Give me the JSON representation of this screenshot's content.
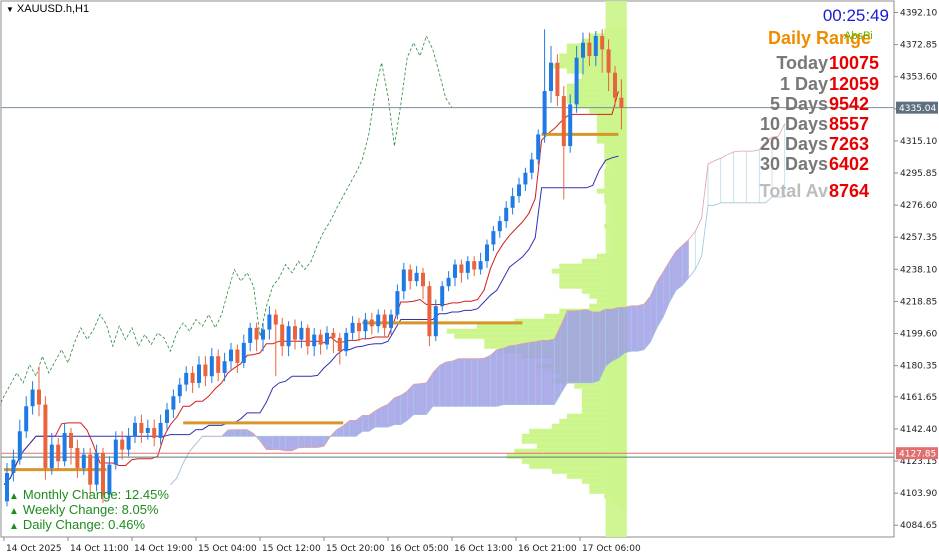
{
  "symbol": {
    "label": "XAUUSD.h,H1",
    "menu_icon": "triangle-down-icon"
  },
  "timer": "00:25:49",
  "daily_range": {
    "title": "Daily Range",
    "subtitle": "AbsPi",
    "rows": [
      {
        "label": "Today",
        "value": "10075"
      },
      {
        "label": "1 Day",
        "value": "12059"
      },
      {
        "label": "5 Days",
        "value": "9542"
      },
      {
        "label": "10 Days",
        "value": "8557"
      },
      {
        "label": "20 Days",
        "value": "7263"
      },
      {
        "label": "30 Days",
        "value": "6402"
      }
    ],
    "total": {
      "label": "Total Av",
      "value": "8764"
    }
  },
  "changes": [
    {
      "label": "Monthly Change: 12.45%",
      "icon": "triangle-up-icon"
    },
    {
      "label": "Weekly Change: 8.05%",
      "icon": "triangle-up-icon"
    },
    {
      "label": "Daily Change: 0.46%",
      "icon": "triangle-up-icon"
    }
  ],
  "colors": {
    "bull": "#1e7be6",
    "bear": "#e8643c",
    "cloud": "#9f9fe6",
    "volume_profile": "#ccf58c",
    "tenkan": "#d21e1e",
    "kijun": "#3232b4",
    "price_line": "#7a8fa0",
    "level_line": "#e07070",
    "support": "#d8962a"
  },
  "chart_data": {
    "type": "candlestick",
    "symbol": "XAUUSD.h",
    "timeframe": "H1",
    "y_range": [
      4080,
      4396
    ],
    "y_ticks": [
      "4392.10",
      "4372.85",
      "4353.60",
      "4334.35",
      "4315.10",
      "4295.85",
      "4276.60",
      "4257.35",
      "4238.10",
      "4218.85",
      "4199.60",
      "4180.35",
      "4161.65",
      "4142.40",
      "4123.15",
      "4103.90",
      "4084.65"
    ],
    "x_ticks": [
      "14 Oct 2025",
      "14 Oct 11:00",
      "14 Oct 19:00",
      "15 Oct 04:00",
      "15 Oct 12:00",
      "15 Oct 20:00",
      "16 Oct 05:00",
      "16 Oct 13:00",
      "16 Oct 21:00",
      "17 Oct 06:00"
    ],
    "current_price": "4335.04",
    "level_line": {
      "value": "4127.85",
      "value2": 4125.5
    },
    "support_lines": [
      {
        "value": 4118,
        "from": 0,
        "to": 16
      },
      {
        "value": 4146,
        "from": 28,
        "to": 53
      },
      {
        "value": 4206,
        "from": 56,
        "to": 81
      },
      {
        "value": 4319,
        "from": 84,
        "to": 96
      }
    ],
    "candles": [
      [
        4099,
        4116,
        4096,
        4122
      ],
      [
        4116,
        4124,
        4111,
        4130
      ],
      [
        4124,
        4141,
        4121,
        4148
      ],
      [
        4141,
        4156,
        4137,
        4162
      ],
      [
        4156,
        4166,
        4151,
        4171
      ],
      [
        4166,
        4157,
        4150,
        4180
      ],
      [
        4157,
        4119,
        4112,
        4162
      ],
      [
        4119,
        4133,
        4115,
        4140
      ],
      [
        4133,
        4123,
        4118,
        4137
      ],
      [
        4123,
        4140,
        4120,
        4146
      ],
      [
        4140,
        4131,
        4121,
        4143
      ],
      [
        4131,
        4119,
        4113,
        4136
      ],
      [
        4119,
        4127,
        4115,
        4131
      ],
      [
        4127,
        4109,
        4103,
        4131
      ],
      [
        4109,
        4128,
        4105,
        4133
      ],
      [
        4128,
        4103,
        4098,
        4131
      ],
      [
        4103,
        4121,
        4101,
        4126
      ],
      [
        4121,
        4136,
        4118,
        4141
      ],
      [
        4136,
        4130,
        4124,
        4141
      ],
      [
        4130,
        4138,
        4126,
        4143
      ],
      [
        4138,
        4146,
        4134,
        4150
      ],
      [
        4146,
        4140,
        4134,
        4151
      ],
      [
        4140,
        4143,
        4136,
        4148
      ],
      [
        4143,
        4137,
        4132,
        4148
      ],
      [
        4137,
        4146,
        4133,
        4151
      ],
      [
        4146,
        4154,
        4142,
        4158
      ],
      [
        4154,
        4162,
        4149,
        4166
      ],
      [
        4162,
        4169,
        4158,
        4173
      ],
      [
        4169,
        4176,
        4165,
        4180
      ],
      [
        4176,
        4170,
        4164,
        4180
      ],
      [
        4170,
        4181,
        4167,
        4186
      ],
      [
        4181,
        4174,
        4168,
        4186
      ],
      [
        4174,
        4186,
        4170,
        4191
      ],
      [
        4186,
        4176,
        4171,
        4190
      ],
      [
        4176,
        4183,
        4171,
        4188
      ],
      [
        4183,
        4190,
        4178,
        4194
      ],
      [
        4190,
        4182,
        4176,
        4193
      ],
      [
        4182,
        4194,
        4179,
        4199
      ],
      [
        4194,
        4203,
        4189,
        4206
      ],
      [
        4203,
        4196,
        4189,
        4206
      ],
      [
        4196,
        4202,
        4189,
        4206
      ],
      [
        4202,
        4211,
        4196,
        4216
      ],
      [
        4211,
        4205,
        4174,
        4214
      ],
      [
        4205,
        4192,
        4186,
        4209
      ],
      [
        4192,
        4204,
        4186,
        4207
      ],
      [
        4204,
        4196,
        4190,
        4208
      ],
      [
        4196,
        4203,
        4191,
        4207
      ],
      [
        4203,
        4192,
        4187,
        4205
      ],
      [
        4192,
        4199,
        4186,
        4203
      ],
      [
        4199,
        4193,
        4187,
        4202
      ],
      [
        4193,
        4200,
        4190,
        4204
      ],
      [
        4200,
        4197,
        4188,
        4203
      ],
      [
        4197,
        4189,
        4181,
        4200
      ],
      [
        4189,
        4200,
        4186,
        4203
      ],
      [
        4200,
        4206,
        4196,
        4210
      ],
      [
        4206,
        4201,
        4195,
        4209
      ],
      [
        4201,
        4208,
        4196,
        4212
      ],
      [
        4208,
        4204,
        4199,
        4212
      ],
      [
        4204,
        4211,
        4200,
        4214
      ],
      [
        4211,
        4203,
        4198,
        4214
      ],
      [
        4203,
        4211,
        4199,
        4214
      ],
      [
        4211,
        4225,
        4208,
        4229
      ],
      [
        4225,
        4238,
        4220,
        4242
      ],
      [
        4238,
        4231,
        4226,
        4241
      ],
      [
        4231,
        4236,
        4228,
        4240
      ],
      [
        4236,
        4228,
        4220,
        4239
      ],
      [
        4228,
        4198,
        4192,
        4231
      ],
      [
        4198,
        4216,
        4195,
        4220
      ],
      [
        4216,
        4228,
        4213,
        4231
      ],
      [
        4228,
        4233,
        4225,
        4237
      ],
      [
        4233,
        4241,
        4228,
        4244
      ],
      [
        4241,
        4236,
        4230,
        4244
      ],
      [
        4236,
        4243,
        4232,
        4246
      ],
      [
        4243,
        4238,
        4234,
        4246
      ],
      [
        4238,
        4243,
        4235,
        4248
      ],
      [
        4243,
        4253,
        4239,
        4256
      ],
      [
        4253,
        4261,
        4249,
        4264
      ],
      [
        4261,
        4267,
        4257,
        4270
      ],
      [
        4267,
        4275,
        4263,
        4279
      ],
      [
        4275,
        4282,
        4271,
        4287
      ],
      [
        4282,
        4289,
        4278,
        4293
      ],
      [
        4289,
        4296,
        4285,
        4299
      ],
      [
        4296,
        4304,
        4292,
        4308
      ],
      [
        4304,
        4319,
        4301,
        4322
      ],
      [
        4319,
        4345,
        4314,
        4382
      ],
      [
        4345,
        4362,
        4338,
        4372
      ],
      [
        4362,
        4342,
        4336,
        4367
      ],
      [
        4342,
        4312,
        4280,
        4348
      ],
      [
        4312,
        4337,
        4308,
        4343
      ],
      [
        4337,
        4365,
        4332,
        4372
      ],
      [
        4365,
        4374,
        4355,
        4380
      ],
      [
        4374,
        4366,
        4360,
        4380
      ],
      [
        4366,
        4378,
        4360,
        4381
      ],
      [
        4378,
        4370,
        4356,
        4382
      ],
      [
        4370,
        4356,
        4345,
        4376
      ],
      [
        4356,
        4341,
        4336,
        4360
      ],
      [
        4341,
        4335,
        4322,
        4352
      ]
    ]
  }
}
